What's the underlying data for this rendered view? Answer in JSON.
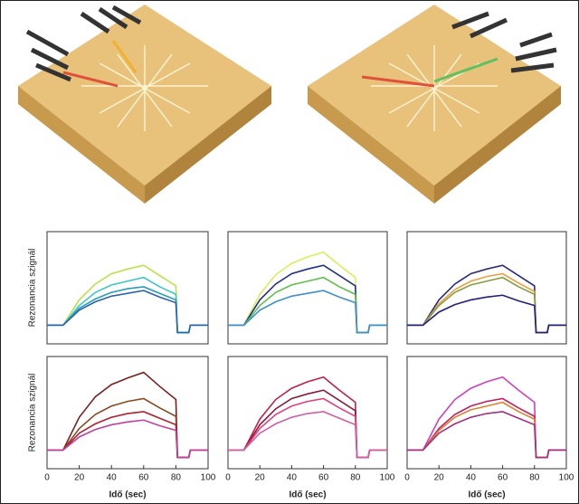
{
  "chart_data": [
    {
      "type": "line",
      "y_label": "Rezonancia szignál",
      "xlim": [
        0,
        100
      ],
      "ylim": [
        -20,
        100
      ],
      "x": [
        0,
        10,
        20,
        30,
        40,
        50,
        60,
        70,
        80,
        81,
        88,
        89,
        100
      ],
      "series": [
        {
          "color": "#b7e34a",
          "values": [
            0,
            0,
            27,
            44,
            55,
            60,
            64,
            53,
            42,
            -8,
            -8,
            0,
            0
          ]
        },
        {
          "color": "#3ec6c8",
          "values": [
            0,
            0,
            21,
            35,
            43,
            47,
            51,
            41,
            33,
            -8,
            -8,
            0,
            0
          ]
        },
        {
          "color": "#2a9db8",
          "values": [
            0,
            0,
            18,
            28,
            35,
            39,
            41,
            34,
            27,
            -8,
            -8,
            0,
            0
          ]
        },
        {
          "color": "#2a64b0",
          "values": [
            0,
            0,
            16,
            25,
            31,
            34,
            37,
            30,
            24,
            -8,
            -8,
            0,
            0
          ]
        }
      ]
    },
    {
      "type": "line",
      "xlim": [
        0,
        100
      ],
      "ylim": [
        -20,
        100
      ],
      "x": [
        0,
        10,
        20,
        30,
        40,
        50,
        60,
        70,
        80,
        81,
        88,
        89,
        100
      ],
      "series": [
        {
          "color": "#d8ef5a",
          "values": [
            0,
            0,
            33,
            54,
            66,
            73,
            78,
            64,
            51,
            -8,
            -8,
            0,
            0
          ]
        },
        {
          "color": "#1f2f8a",
          "values": [
            0,
            0,
            27,
            44,
            55,
            60,
            64,
            53,
            42,
            -8,
            -8,
            0,
            0
          ]
        },
        {
          "color": "#5ec04a",
          "values": [
            0,
            0,
            21,
            35,
            43,
            47,
            51,
            41,
            33,
            -8,
            -8,
            0,
            0
          ]
        },
        {
          "color": "#3e8fd0",
          "values": [
            0,
            0,
            16,
            25,
            31,
            34,
            37,
            30,
            24,
            -8,
            -8,
            0,
            0
          ]
        }
      ]
    },
    {
      "type": "line",
      "xlim": [
        0,
        100
      ],
      "ylim": [
        -20,
        100
      ],
      "x": [
        0,
        10,
        20,
        30,
        40,
        50,
        60,
        70,
        80,
        81,
        88,
        89,
        100
      ],
      "series": [
        {
          "color": "#2a2a7a",
          "values": [
            0,
            0,
            27,
            44,
            55,
            60,
            64,
            53,
            42,
            -8,
            -8,
            0,
            0
          ]
        },
        {
          "color": "#e8a040",
          "values": [
            0,
            0,
            23,
            38,
            47,
            52,
            55,
            45,
            36,
            -8,
            -8,
            0,
            0
          ]
        },
        {
          "color": "#8a9a40",
          "values": [
            0,
            0,
            21,
            35,
            43,
            47,
            51,
            41,
            33,
            -8,
            -8,
            0,
            0
          ]
        },
        {
          "color": "#20207a",
          "values": [
            0,
            0,
            14,
            22,
            27,
            30,
            32,
            26,
            21,
            -8,
            -8,
            0,
            0
          ]
        }
      ]
    },
    {
      "type": "line",
      "y_label": "Rezonancia szignál",
      "x_label": "Idő (sec)",
      "xlim": [
        0,
        100
      ],
      "ylim": [
        -20,
        100
      ],
      "xticks": [
        0,
        20,
        40,
        60,
        80,
        100
      ],
      "x": [
        0,
        10,
        20,
        30,
        40,
        50,
        60,
        70,
        80,
        81,
        88,
        89,
        100
      ],
      "series": [
        {
          "color": "#7a2020",
          "values": [
            0,
            0,
            35,
            57,
            70,
            77,
            83,
            68,
            54,
            -8,
            -8,
            0,
            0
          ]
        },
        {
          "color": "#8a4a20",
          "values": [
            0,
            0,
            23,
            38,
            47,
            52,
            55,
            45,
            36,
            -8,
            -8,
            0,
            0
          ]
        },
        {
          "color": "#b02030",
          "values": [
            0,
            0,
            18,
            28,
            35,
            39,
            41,
            34,
            27,
            -8,
            -8,
            0,
            0
          ]
        },
        {
          "color": "#c040a0",
          "values": [
            0,
            0,
            14,
            22,
            27,
            30,
            32,
            26,
            21,
            -8,
            -8,
            0,
            0
          ]
        }
      ]
    },
    {
      "type": "line",
      "x_label": "Idő (sec)",
      "xlim": [
        0,
        100
      ],
      "ylim": [
        -20,
        100
      ],
      "xticks": [
        0,
        20,
        40,
        60,
        80,
        100
      ],
      "x": [
        0,
        10,
        20,
        30,
        40,
        50,
        60,
        70,
        80,
        81,
        88,
        89,
        100
      ],
      "series": [
        {
          "color": "#c0204a",
          "values": [
            0,
            0,
            33,
            54,
            66,
            73,
            78,
            64,
            51,
            -8,
            -8,
            0,
            0
          ]
        },
        {
          "color": "#8a1a3a",
          "values": [
            0,
            0,
            27,
            44,
            55,
            60,
            64,
            53,
            42,
            -8,
            -8,
            0,
            0
          ]
        },
        {
          "color": "#e04080",
          "values": [
            0,
            0,
            23,
            38,
            47,
            52,
            55,
            45,
            36,
            -8,
            -8,
            0,
            0
          ]
        },
        {
          "color": "#d060a0",
          "values": [
            0,
            0,
            18,
            28,
            35,
            39,
            41,
            34,
            27,
            -8,
            -8,
            0,
            0
          ]
        }
      ]
    },
    {
      "type": "line",
      "x_label": "Idő (sec)",
      "xlim": [
        0,
        100
      ],
      "ylim": [
        -20,
        100
      ],
      "xticks": [
        0,
        20,
        40,
        60,
        80,
        100
      ],
      "x": [
        0,
        10,
        20,
        30,
        40,
        50,
        60,
        70,
        80,
        81,
        88,
        89,
        100
      ],
      "series": [
        {
          "color": "#d040c0",
          "values": [
            0,
            0,
            33,
            54,
            66,
            73,
            78,
            64,
            51,
            -8,
            -8,
            0,
            0
          ]
        },
        {
          "color": "#c02060",
          "values": [
            0,
            0,
            23,
            38,
            47,
            52,
            55,
            45,
            36,
            -8,
            -8,
            0,
            0
          ]
        },
        {
          "color": "#e08030",
          "values": [
            0,
            0,
            21,
            35,
            43,
            47,
            51,
            41,
            33,
            -8,
            -8,
            0,
            0
          ]
        },
        {
          "color": "#a03080",
          "values": [
            0,
            0,
            18,
            28,
            35,
            39,
            41,
            34,
            27,
            -8,
            -8,
            0,
            0
          ]
        }
      ]
    }
  ]
}
